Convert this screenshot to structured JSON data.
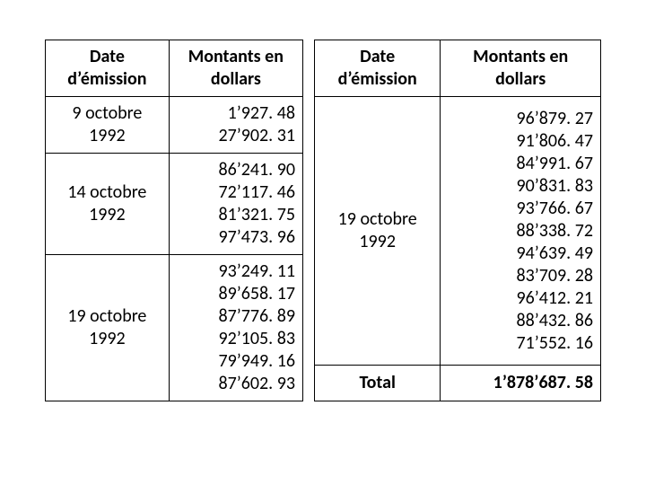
{
  "left": {
    "headers": {
      "date": "Date d’émission",
      "amount": "Montants en dollars"
    },
    "col_widths": [
      "48%",
      "52%"
    ],
    "rows": [
      {
        "date": "9 octobre 1992",
        "amounts": [
          "1’927. 48",
          "27’902. 31"
        ]
      },
      {
        "date": "14 octobre 1992",
        "amounts": [
          "86’241. 90",
          "72’117. 46",
          "81’321. 75",
          "97’473. 96"
        ]
      },
      {
        "date": "19 octobre 1992",
        "amounts": [
          "93’249. 11",
          "89’658. 17",
          "87’776. 89",
          "92’105. 83",
          "79’949. 16",
          "87’602. 93"
        ]
      }
    ]
  },
  "right": {
    "headers": {
      "date": "Date d’émission",
      "amount": "Montants en dollars"
    },
    "col_widths": [
      "44%",
      "56%"
    ],
    "rows": [
      {
        "date": "19 octobre 1992",
        "amounts": [
          "96’879. 27",
          "91’806. 47",
          "84’991. 67",
          "90’831. 83",
          "93’766. 67",
          "88’338. 72",
          "94’639. 49",
          "83’709. 28",
          "96’412. 21",
          "88’432. 86",
          "71’552. 16"
        ]
      }
    ],
    "total": {
      "label": "Total",
      "value": "1’878’687. 58"
    }
  },
  "style": {
    "font_family": "Calibri",
    "font_size_pt": 15,
    "border_color": "#000000",
    "background_color": "#ffffff",
    "text_color": "#000000"
  }
}
